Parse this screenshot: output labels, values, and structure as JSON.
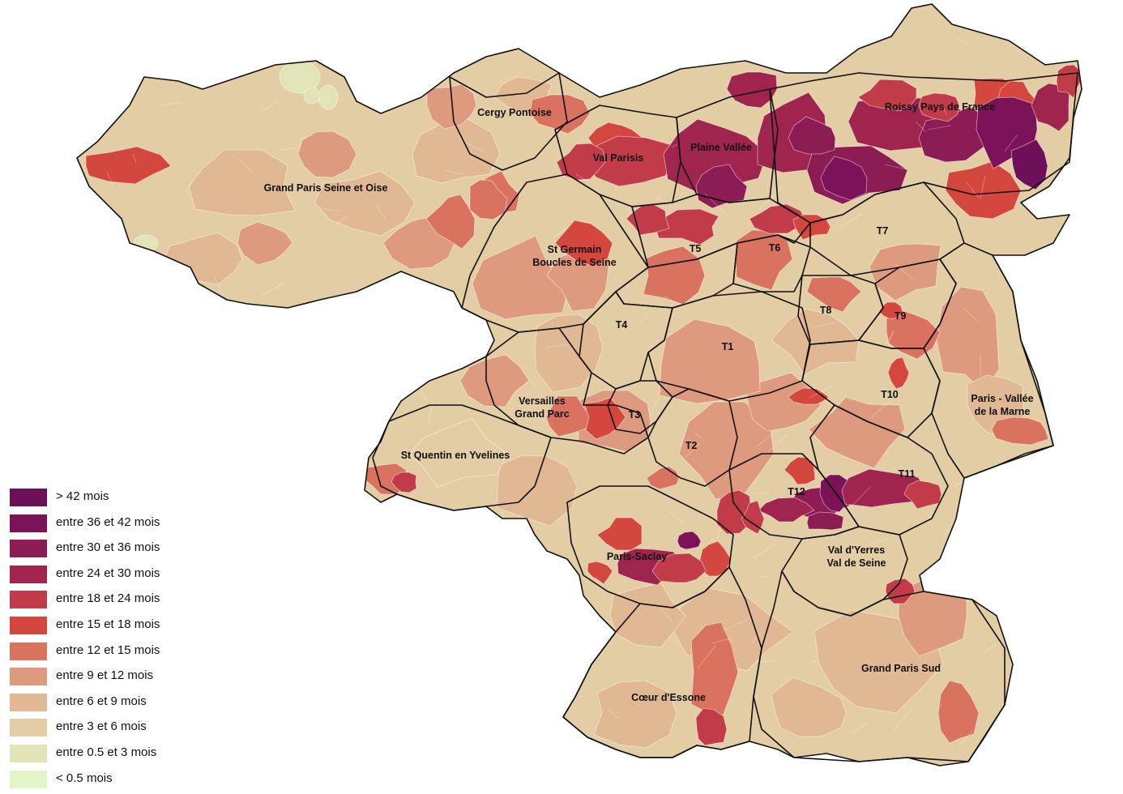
{
  "legend": [
    {
      "label": "> 42 mois",
      "color": "#6e0f5a"
    },
    {
      "label": "entre 36 et 42 mois",
      "color": "#7c1358"
    },
    {
      "label": "entre 30 et 36 mois",
      "color": "#8c1c54"
    },
    {
      "label": "entre 24 et 30 mois",
      "color": "#a0254e"
    },
    {
      "label": "entre 18 et 24 mois",
      "color": "#c13c48"
    },
    {
      "label": "entre 15 et 18 mois",
      "color": "#d4473e"
    },
    {
      "label": "entre 12 et 15 mois",
      "color": "#d9735f"
    },
    {
      "label": "entre 9 et 12 mois",
      "color": "#dd9a7e"
    },
    {
      "label": "entre 6 et 9 mois",
      "color": "#e0b894"
    },
    {
      "label": "entre 3 et 6 mois",
      "color": "#e3cda5"
    },
    {
      "label": "entre 0.5 et 3 mois",
      "color": "#e2e3b6"
    },
    {
      "label": "< 0.5 mois",
      "color": "#e3f4c8"
    }
  ],
  "territories": [
    {
      "name": "Cergy Pontoise"
    },
    {
      "name": "Val Parisis"
    },
    {
      "name": "Plaine Vallée"
    },
    {
      "name": "Roissy Pays de France"
    },
    {
      "name": "Grand Paris Seine et Oise"
    },
    {
      "name": "St Germain",
      "name2": "Boucles de Seine"
    },
    {
      "name": "T5"
    },
    {
      "name": "T6"
    },
    {
      "name": "T7"
    },
    {
      "name": "T8"
    },
    {
      "name": "T9"
    },
    {
      "name": "T4"
    },
    {
      "name": "T1"
    },
    {
      "name": "T10"
    },
    {
      "name": "Paris - Vallée",
      "name2": "de la Marne"
    },
    {
      "name": "Versailles",
      "name2": "Grand Parc"
    },
    {
      "name": "T3"
    },
    {
      "name": "T2"
    },
    {
      "name": "St Quentin en Yvelines"
    },
    {
      "name": "T11"
    },
    {
      "name": "T12"
    },
    {
      "name": "Val d'Yerres",
      "name2": "Val de Seine"
    },
    {
      "name": "Paris-Saclay"
    },
    {
      "name": "Grand Paris Sud"
    },
    {
      "name": "Cœur d'Essone"
    }
  ]
}
